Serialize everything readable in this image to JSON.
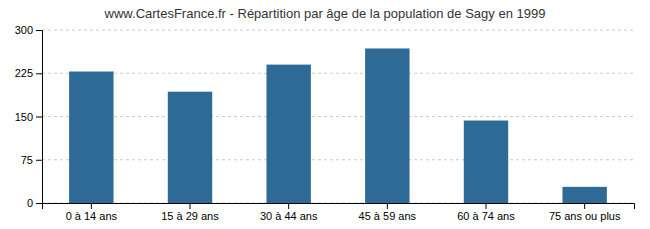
{
  "chart_data": {
    "type": "bar",
    "title": "www.CartesFrance.fr - Répartition par âge de la population de Sagy en 1999",
    "categories": [
      "0 à 14 ans",
      "15 à 29 ans",
      "30 à 44 ans",
      "45 à 59 ans",
      "60 à 74 ans",
      "75 ans ou plus"
    ],
    "values": [
      228,
      193,
      240,
      268,
      143,
      28
    ],
    "color": "#2d6a96",
    "ylim": [
      0,
      300
    ],
    "yticks": [
      0,
      75,
      150,
      225,
      300
    ],
    "grid": true
  }
}
